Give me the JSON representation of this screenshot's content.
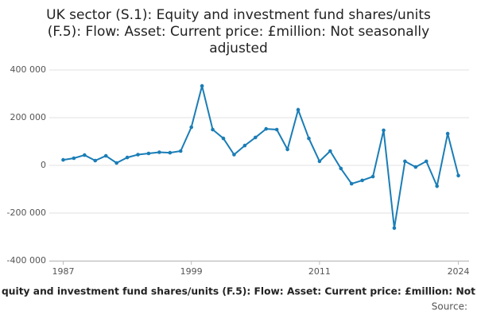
{
  "chart_data": {
    "type": "line",
    "title": [
      "UK sector (S.1): Equity and investment fund shares/units",
      "(F.5): Flow: Asset: Current price: £million: Not seasonally",
      "adjusted"
    ],
    "caption": "quity and investment fund shares/units (F.5): Flow: Asset: Current price: £million: Not",
    "source": "Source:",
    "x": [
      1987,
      1988,
      1989,
      1990,
      1991,
      1992,
      1993,
      1994,
      1995,
      1996,
      1997,
      1998,
      1999,
      2000,
      2001,
      2002,
      2003,
      2004,
      2005,
      2006,
      2007,
      2008,
      2009,
      2010,
      2011,
      2012,
      2013,
      2014,
      2015,
      2016,
      2017,
      2018,
      2019,
      2020,
      2021,
      2022,
      2023,
      2024
    ],
    "series": [
      {
        "name": "UK sector (S.1)",
        "color": "#1a7db6",
        "values": [
          23000,
          30000,
          43000,
          20000,
          40000,
          10000,
          33000,
          45000,
          50000,
          55000,
          53000,
          60000,
          160000,
          333000,
          150000,
          113000,
          45000,
          83000,
          117000,
          153000,
          150000,
          67000,
          233000,
          113000,
          17000,
          60000,
          -13000,
          -77000,
          -63000,
          -47000,
          147000,
          -263000,
          17000,
          -7000,
          17000,
          -87000,
          133000,
          -43000
        ]
      }
    ],
    "xlim": [
      1985.7,
      2025
    ],
    "xticks": [
      1987,
      1999,
      2011,
      2024
    ],
    "ylim": [
      -400000,
      400000
    ],
    "yticks": [
      {
        "value": -400000,
        "label": "-400 000"
      },
      {
        "value": -200000,
        "label": "-200 000"
      },
      0,
      {
        "value": 200000,
        "label": "200 000"
      },
      {
        "value": 400000,
        "label": "400 000"
      }
    ],
    "grid": true
  }
}
